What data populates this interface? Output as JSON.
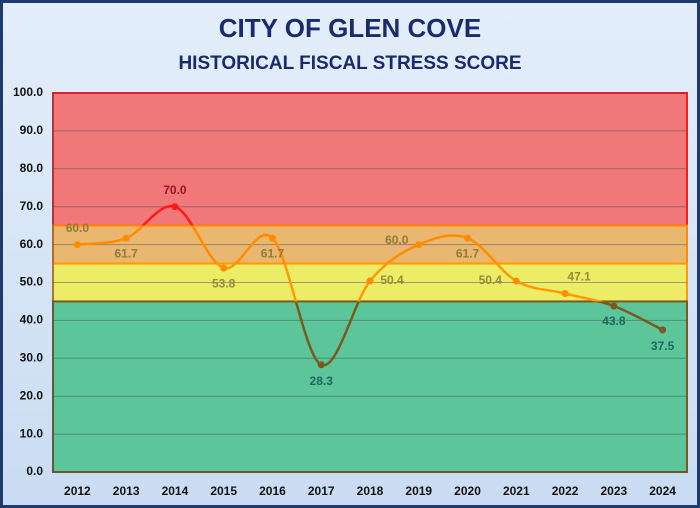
{
  "chart_data": {
    "type": "line",
    "title": "CITY OF GLEN COVE",
    "subtitle": "HISTORICAL FISCAL STRESS SCORE",
    "categories": [
      "2012",
      "2013",
      "2014",
      "2015",
      "2016",
      "2017",
      "2018",
      "2019",
      "2020",
      "2021",
      "2022",
      "2023",
      "2024"
    ],
    "series": [
      {
        "name": "Fiscal Stress Score",
        "color": "#ff8c00",
        "values": [
          60.0,
          61.7,
          70.0,
          53.8,
          61.7,
          28.3,
          50.4,
          60.0,
          61.7,
          50.4,
          47.1,
          43.8,
          37.5
        ],
        "value_labels": [
          "60.0",
          "61.7",
          "70.0",
          "53.8",
          "61.7",
          "28.3",
          "50.4",
          "60.0",
          "61.7",
          "50.4",
          "47.1",
          "43.8",
          "37.5"
        ]
      }
    ],
    "bands": [
      {
        "from": 65,
        "to": 100,
        "color": "#f07878",
        "line_color": "#ff1a1a",
        "label_color": "#a0102a"
      },
      {
        "from": 55,
        "to": 65,
        "color": "#eab770",
        "line_color": "#ff8c00",
        "label_color": "#8f7a3c"
      },
      {
        "from": 45,
        "to": 55,
        "color": "#ecec66",
        "line_color": "#ff9a00",
        "label_color": "#8f8f3c"
      },
      {
        "from": 0,
        "to": 45,
        "color": "#5cc59a",
        "line_color": "#7a5a1e",
        "label_color": "#1a6a5c"
      }
    ],
    "ylim": [
      0,
      100
    ],
    "yticks": [
      {
        "value": 0,
        "label": "0.0"
      },
      {
        "value": 10,
        "label": "10.0"
      },
      {
        "value": 20,
        "label": "20.0"
      },
      {
        "value": 30,
        "label": "30.0"
      },
      {
        "value": 40,
        "label": "40.0"
      },
      {
        "value": 50,
        "label": "50.0"
      },
      {
        "value": 60,
        "label": "60.0"
      },
      {
        "value": 70,
        "label": "70.0"
      },
      {
        "value": 80,
        "label": "80.0"
      },
      {
        "value": 90,
        "label": "90.0"
      },
      {
        "value": 100,
        "label": "100.0"
      }
    ],
    "grid": true
  }
}
